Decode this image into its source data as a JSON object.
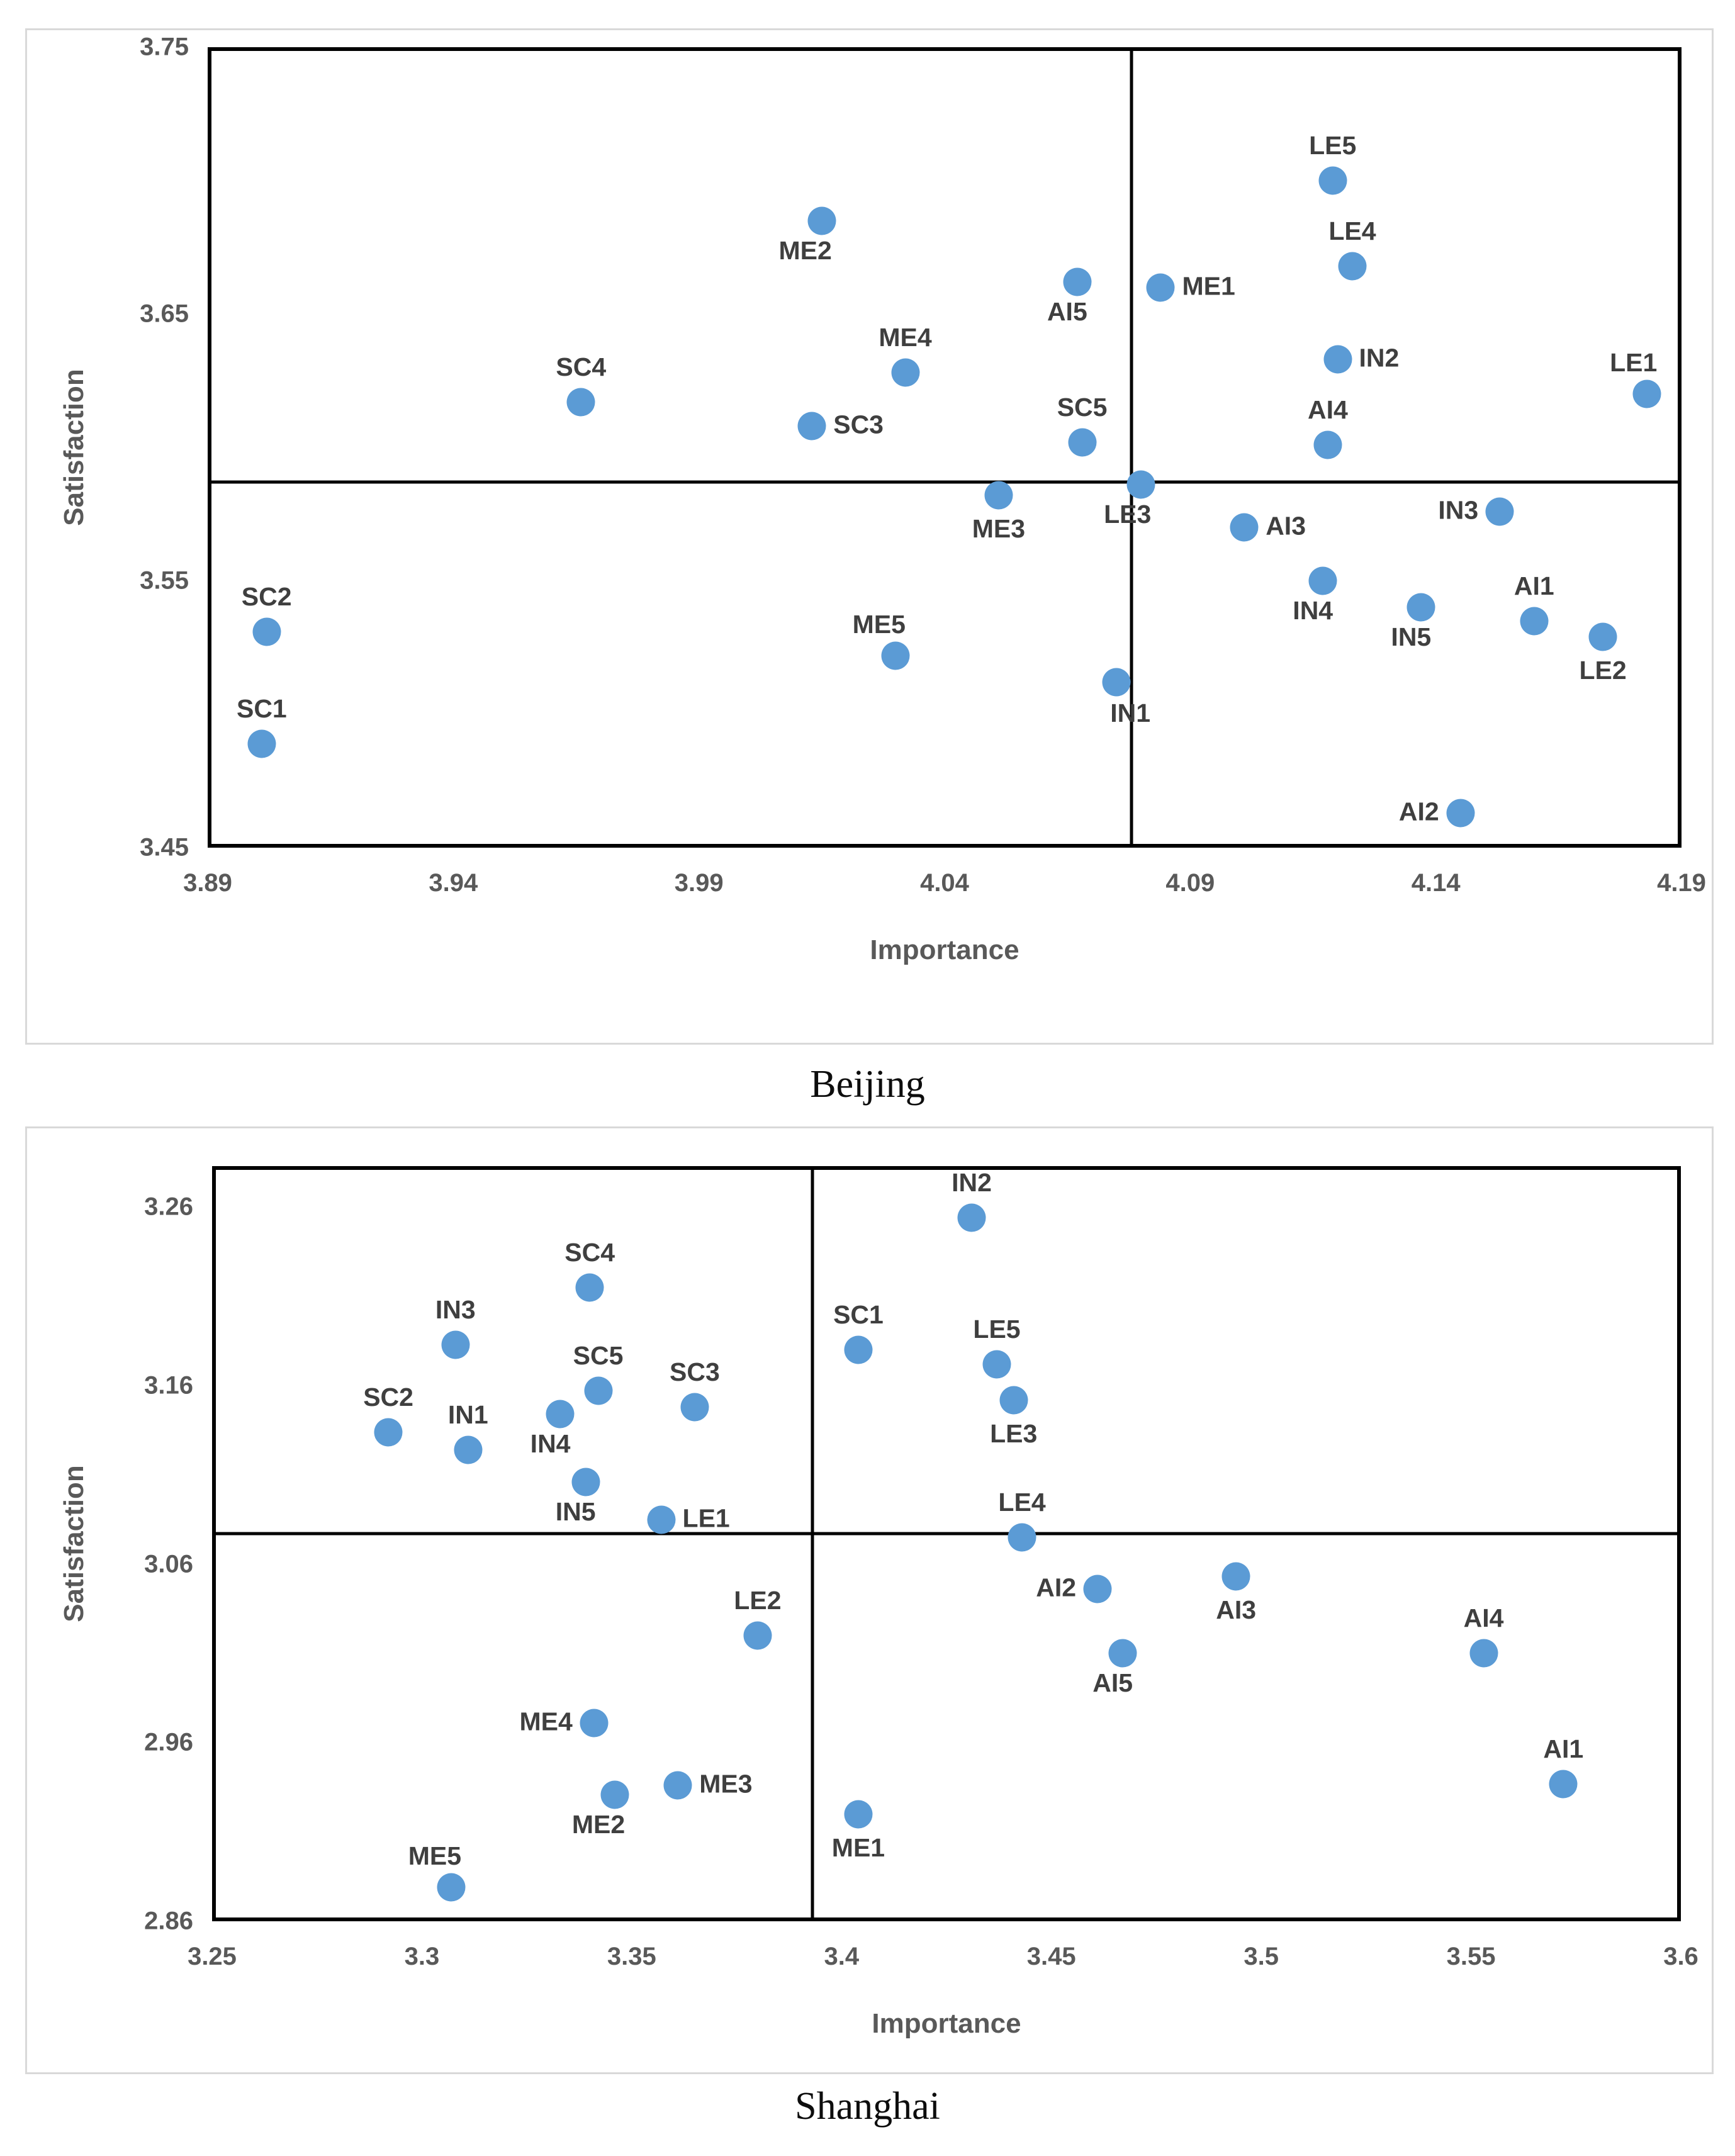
{
  "chart_data": [
    {
      "type": "scatter",
      "caption": "Beijing",
      "xlabel": "Importance",
      "ylabel": "Satisfaction",
      "x_axis": {
        "min": 3.89,
        "max": 4.19,
        "ticks": [
          "3.89",
          "3.94",
          "3.99",
          "4.04",
          "4.09",
          "4.14",
          "4.19"
        ]
      },
      "y_axis": {
        "min": 3.45,
        "max": 3.75,
        "ticks": [
          "3.45",
          "3.55",
          "3.65",
          "3.75"
        ]
      },
      "quadrant_lines": {
        "x": 4.078,
        "y": 3.587
      },
      "grid": false,
      "legend": "none",
      "marker_color": "#5b9bd5",
      "points": [
        {
          "label": "SC1",
          "x": 3.901,
          "y": 3.489,
          "label_pos": "above"
        },
        {
          "label": "SC2",
          "x": 3.902,
          "y": 3.531,
          "label_pos": "above"
        },
        {
          "label": "SC3",
          "x": 4.013,
          "y": 3.608,
          "label_pos": "right"
        },
        {
          "label": "SC4",
          "x": 3.966,
          "y": 3.617,
          "label_pos": "above"
        },
        {
          "label": "SC5",
          "x": 4.068,
          "y": 3.602,
          "label_pos": "above"
        },
        {
          "label": "ME1",
          "x": 4.084,
          "y": 3.66,
          "label_pos": "right"
        },
        {
          "label": "ME2",
          "x": 4.015,
          "y": 3.685,
          "label_pos": "below-left"
        },
        {
          "label": "ME3",
          "x": 4.051,
          "y": 3.582,
          "label_pos": "below"
        },
        {
          "label": "ME4",
          "x": 4.032,
          "y": 3.628,
          "label_pos": "above"
        },
        {
          "label": "ME5",
          "x": 4.03,
          "y": 3.522,
          "label_pos": "above-left"
        },
        {
          "label": "LE1",
          "x": 4.183,
          "y": 3.62,
          "label_pos": "above-left"
        },
        {
          "label": "LE2",
          "x": 4.174,
          "y": 3.529,
          "label_pos": "below"
        },
        {
          "label": "LE3",
          "x": 4.08,
          "y": 3.586,
          "label_pos": "below-left"
        },
        {
          "label": "LE4",
          "x": 4.123,
          "y": 3.668,
          "label_pos": "above"
        },
        {
          "label": "LE5",
          "x": 4.119,
          "y": 3.7,
          "label_pos": "above"
        },
        {
          "label": "IN1",
          "x": 4.075,
          "y": 3.512,
          "label_pos": "below-right"
        },
        {
          "label": "IN2",
          "x": 4.12,
          "y": 3.633,
          "label_pos": "right"
        },
        {
          "label": "IN3",
          "x": 4.153,
          "y": 3.576,
          "label_pos": "left"
        },
        {
          "label": "IN4",
          "x": 4.117,
          "y": 3.55,
          "label_pos": "below-left"
        },
        {
          "label": "IN5",
          "x": 4.137,
          "y": 3.54,
          "label_pos": "below-left"
        },
        {
          "label": "AI1",
          "x": 4.16,
          "y": 3.535,
          "label_pos": "above"
        },
        {
          "label": "AI2",
          "x": 4.145,
          "y": 3.463,
          "label_pos": "left"
        },
        {
          "label": "AI3",
          "x": 4.101,
          "y": 3.57,
          "label_pos": "right"
        },
        {
          "label": "AI4",
          "x": 4.118,
          "y": 3.601,
          "label_pos": "above"
        },
        {
          "label": "AI5",
          "x": 4.067,
          "y": 3.662,
          "label_pos": "below-left"
        }
      ]
    },
    {
      "type": "scatter",
      "caption": "Shanghai",
      "xlabel": "Importance",
      "ylabel": "Satisfaction",
      "x_axis": {
        "min": 3.25,
        "max": 3.6,
        "ticks": [
          "3.25",
          "3.3",
          "3.35",
          "3.4",
          "3.45",
          "3.5",
          "3.55",
          "3.6"
        ]
      },
      "y_axis": {
        "min": 2.86,
        "max": 3.283,
        "ticks": [
          "2.86",
          "2.96",
          "3.06",
          "3.16",
          "3.26"
        ]
      },
      "quadrant_lines": {
        "x": 3.393,
        "y": 3.077
      },
      "grid": false,
      "legend": "none",
      "marker_color": "#5b9bd5",
      "points": [
        {
          "label": "SC1",
          "x": 3.404,
          "y": 3.18,
          "label_pos": "above"
        },
        {
          "label": "SC2",
          "x": 3.292,
          "y": 3.134,
          "label_pos": "above"
        },
        {
          "label": "SC3",
          "x": 3.365,
          "y": 3.148,
          "label_pos": "above"
        },
        {
          "label": "SC4",
          "x": 3.34,
          "y": 3.215,
          "label_pos": "above"
        },
        {
          "label": "SC5",
          "x": 3.342,
          "y": 3.157,
          "label_pos": "above"
        },
        {
          "label": "ME1",
          "x": 3.404,
          "y": 2.92,
          "label_pos": "below"
        },
        {
          "label": "ME2",
          "x": 3.346,
          "y": 2.931,
          "label_pos": "below-left"
        },
        {
          "label": "ME3",
          "x": 3.361,
          "y": 2.936,
          "label_pos": "right"
        },
        {
          "label": "ME4",
          "x": 3.341,
          "y": 2.971,
          "label_pos": "left"
        },
        {
          "label": "ME5",
          "x": 3.307,
          "y": 2.879,
          "label_pos": "above-left"
        },
        {
          "label": "LE1",
          "x": 3.357,
          "y": 3.085,
          "label_pos": "right"
        },
        {
          "label": "LE2",
          "x": 3.38,
          "y": 3.02,
          "label_pos": "above"
        },
        {
          "label": "LE3",
          "x": 3.441,
          "y": 3.152,
          "label_pos": "below"
        },
        {
          "label": "LE4",
          "x": 3.443,
          "y": 3.075,
          "label_pos": "above"
        },
        {
          "label": "LE5",
          "x": 3.437,
          "y": 3.172,
          "label_pos": "above"
        },
        {
          "label": "IN1",
          "x": 3.311,
          "y": 3.124,
          "label_pos": "above"
        },
        {
          "label": "IN2",
          "x": 3.431,
          "y": 3.254,
          "label_pos": "above"
        },
        {
          "label": "IN3",
          "x": 3.308,
          "y": 3.183,
          "label_pos": "above"
        },
        {
          "label": "IN4",
          "x": 3.333,
          "y": 3.144,
          "label_pos": "below-left"
        },
        {
          "label": "IN5",
          "x": 3.339,
          "y": 3.106,
          "label_pos": "below-left"
        },
        {
          "label": "AI1",
          "x": 3.572,
          "y": 2.937,
          "label_pos": "above"
        },
        {
          "label": "AI2",
          "x": 3.461,
          "y": 3.046,
          "label_pos": "left"
        },
        {
          "label": "AI3",
          "x": 3.494,
          "y": 3.053,
          "label_pos": "below"
        },
        {
          "label": "AI4",
          "x": 3.553,
          "y": 3.01,
          "label_pos": "above"
        },
        {
          "label": "AI5",
          "x": 3.467,
          "y": 3.01,
          "label_pos": "below-left"
        }
      ]
    }
  ]
}
